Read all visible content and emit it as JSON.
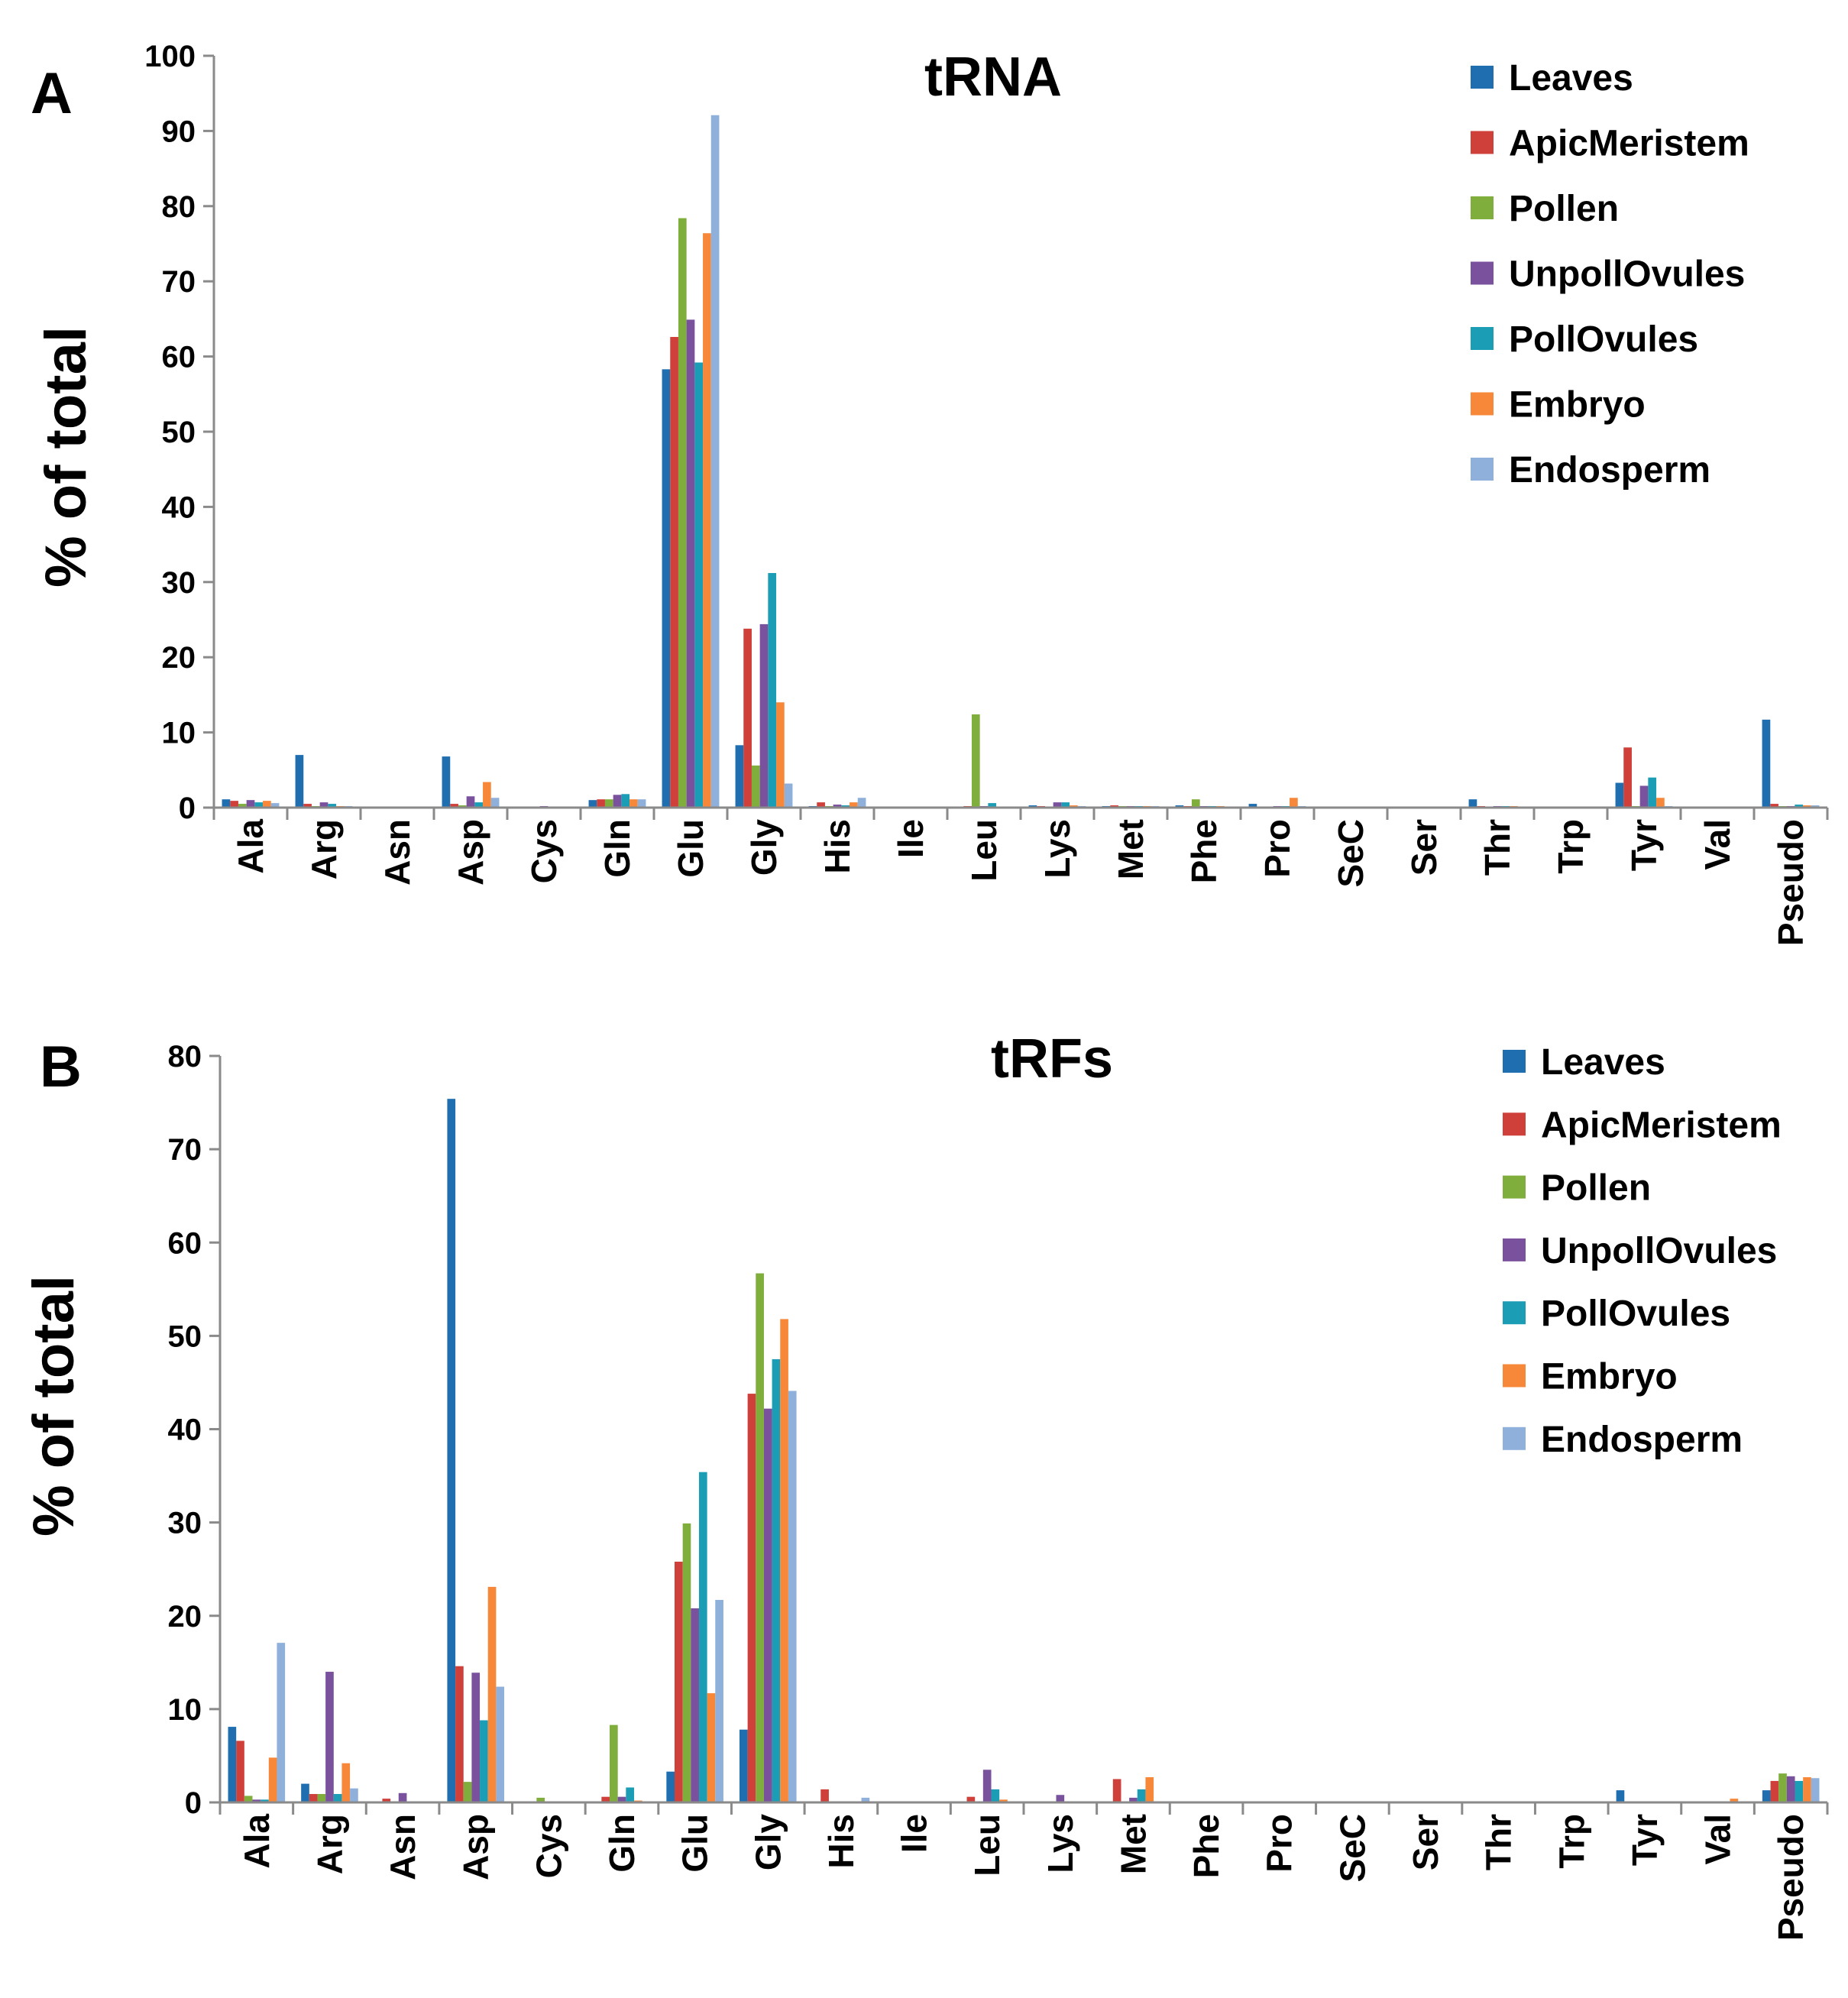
{
  "categories": [
    "Ala",
    "Arg",
    "Asn",
    "Asp",
    "Cys",
    "Gln",
    "Glu",
    "Gly",
    "His",
    "Ile",
    "Leu",
    "Lys",
    "Met",
    "Phe",
    "Pro",
    "SeC",
    "Ser",
    "Thr",
    "Trp",
    "Tyr",
    "Val",
    "Pseudo"
  ],
  "series_names": [
    "Leaves",
    "ApicMeristem",
    "Pollen",
    "UnpollOvules",
    "PollOvules",
    "Embryo",
    "Endosperm"
  ],
  "colors": [
    "#1F6FB0",
    "#D0403A",
    "#7FAE3C",
    "#7A519D",
    "#1A9DB5",
    "#F7883A",
    "#8FB0DB"
  ],
  "chart_data": [
    {
      "type": "bar",
      "panel_label": "A",
      "title": "tRNA",
      "xlabel": "",
      "ylabel": "% of total",
      "ylim": [
        0,
        100
      ],
      "yticks": [
        0,
        10,
        20,
        30,
        40,
        50,
        60,
        70,
        80,
        90,
        100
      ],
      "grid": false,
      "legend_position": "top-right",
      "categories": [
        "Ala",
        "Arg",
        "Asn",
        "Asp",
        "Cys",
        "Gln",
        "Glu",
        "Gly",
        "His",
        "Ile",
        "Leu",
        "Lys",
        "Met",
        "Phe",
        "Pro",
        "SeC",
        "Ser",
        "Thr",
        "Trp",
        "Tyr",
        "Val",
        "Pseudo"
      ],
      "series": [
        {
          "name": "Leaves",
          "values": [
            1.1,
            7.0,
            0.0,
            6.8,
            0.1,
            1.0,
            58.3,
            8.3,
            0.2,
            0.0,
            0.1,
            0.3,
            0.2,
            0.3,
            0.5,
            0.0,
            0.0,
            1.1,
            0.0,
            3.3,
            0.0,
            11.7
          ]
        },
        {
          "name": "ApicMeristem",
          "values": [
            0.9,
            0.5,
            0.0,
            0.5,
            0.0,
            1.1,
            62.6,
            23.8,
            0.7,
            0.0,
            0.2,
            0.2,
            0.3,
            0.2,
            0.1,
            0.0,
            0.0,
            0.2,
            0.0,
            8.0,
            0.0,
            0.5
          ]
        },
        {
          "name": "Pollen",
          "values": [
            0.5,
            0.2,
            0.0,
            0.3,
            0.1,
            1.1,
            78.4,
            5.6,
            0.2,
            0.0,
            12.4,
            0.1,
            0.2,
            1.1,
            0.1,
            0.0,
            0.0,
            0.1,
            0.0,
            0.2,
            0.0,
            0.2
          ]
        },
        {
          "name": "UnpollOvules",
          "values": [
            1.0,
            0.7,
            0.0,
            1.5,
            0.2,
            1.7,
            64.9,
            24.4,
            0.4,
            0.0,
            0.2,
            0.7,
            0.2,
            0.2,
            0.2,
            0.0,
            0.0,
            0.2,
            0.0,
            2.9,
            0.0,
            0.2
          ]
        },
        {
          "name": "PollOvules",
          "values": [
            0.7,
            0.5,
            0.0,
            0.7,
            0.1,
            1.8,
            59.2,
            31.2,
            0.3,
            0.0,
            0.6,
            0.7,
            0.2,
            0.2,
            0.2,
            0.0,
            0.0,
            0.2,
            0.0,
            4.0,
            0.0,
            0.4
          ]
        },
        {
          "name": "Embryo",
          "values": [
            0.9,
            0.2,
            0.0,
            3.4,
            0.1,
            1.1,
            76.4,
            14.0,
            0.7,
            0.0,
            0.1,
            0.3,
            0.2,
            0.2,
            1.3,
            0.0,
            0.0,
            0.2,
            0.0,
            1.3,
            0.0,
            0.3
          ]
        },
        {
          "name": "Endosperm",
          "values": [
            0.6,
            0.2,
            0.0,
            1.3,
            0.1,
            1.1,
            92.1,
            3.2,
            1.3,
            0.0,
            0.1,
            0.2,
            0.2,
            0.1,
            0.2,
            0.0,
            0.0,
            0.1,
            0.0,
            0.2,
            0.0,
            0.3
          ]
        }
      ]
    },
    {
      "type": "bar",
      "panel_label": "B",
      "title": "tRFs",
      "xlabel": "",
      "ylabel": "% of total",
      "ylim": [
        0,
        80
      ],
      "yticks": [
        0,
        10,
        20,
        30,
        40,
        50,
        60,
        70,
        80
      ],
      "grid": false,
      "legend_position": "top-right",
      "categories": [
        "Ala",
        "Arg",
        "Asn",
        "Asp",
        "Cys",
        "Gln",
        "Glu",
        "Gly",
        "His",
        "Ile",
        "Leu",
        "Lys",
        "Met",
        "Phe",
        "Pro",
        "SeC",
        "Ser",
        "Thr",
        "Trp",
        "Tyr",
        "Val",
        "Pseudo"
      ],
      "series": [
        {
          "name": "Leaves",
          "values": [
            8.1,
            2.0,
            0.1,
            75.4,
            0.0,
            0.1,
            3.3,
            7.8,
            0.1,
            0.0,
            0.1,
            0.1,
            0.1,
            0.0,
            0.0,
            0.0,
            0.0,
            0.0,
            0.0,
            1.3,
            0.0,
            1.3
          ]
        },
        {
          "name": "ApicMeristem",
          "values": [
            6.6,
            0.9,
            0.4,
            14.6,
            0.1,
            0.6,
            25.8,
            43.8,
            1.4,
            0.0,
            0.6,
            0.1,
            2.5,
            0.0,
            0.0,
            0.0,
            0.0,
            0.0,
            0.0,
            0.1,
            0.0,
            2.3
          ]
        },
        {
          "name": "Pollen",
          "values": [
            0.7,
            0.9,
            0.1,
            2.2,
            0.5,
            8.3,
            29.9,
            56.7,
            0.1,
            0.0,
            0.1,
            0.1,
            0.1,
            0.0,
            0.0,
            0.0,
            0.0,
            0.0,
            0.0,
            0.1,
            0.0,
            3.1
          ]
        },
        {
          "name": "UnpollOvules",
          "values": [
            0.3,
            14.0,
            1.0,
            13.9,
            0.1,
            0.6,
            20.8,
            42.2,
            0.1,
            0.0,
            3.5,
            0.8,
            0.5,
            0.0,
            0.0,
            0.0,
            0.0,
            0.0,
            0.0,
            0.1,
            0.0,
            2.8
          ]
        },
        {
          "name": "PollOvules",
          "values": [
            0.3,
            0.9,
            0.1,
            8.8,
            0.1,
            1.6,
            35.4,
            47.5,
            0.1,
            0.0,
            1.4,
            0.1,
            1.4,
            0.0,
            0.0,
            0.0,
            0.0,
            0.0,
            0.0,
            0.1,
            0.0,
            2.3
          ]
        },
        {
          "name": "Embryo",
          "values": [
            4.8,
            4.2,
            0.1,
            23.1,
            0.1,
            0.2,
            11.7,
            51.8,
            0.1,
            0.0,
            0.3,
            0.1,
            2.7,
            0.0,
            0.0,
            0.0,
            0.0,
            0.0,
            0.0,
            0.1,
            0.4,
            2.7
          ]
        },
        {
          "name": "Endosperm",
          "values": [
            17.1,
            1.5,
            0.1,
            12.4,
            0.1,
            0.1,
            21.7,
            44.1,
            0.5,
            0.0,
            0.1,
            0.1,
            0.1,
            0.0,
            0.0,
            0.0,
            0.0,
            0.0,
            0.0,
            0.1,
            0.0,
            2.6
          ]
        }
      ]
    }
  ]
}
